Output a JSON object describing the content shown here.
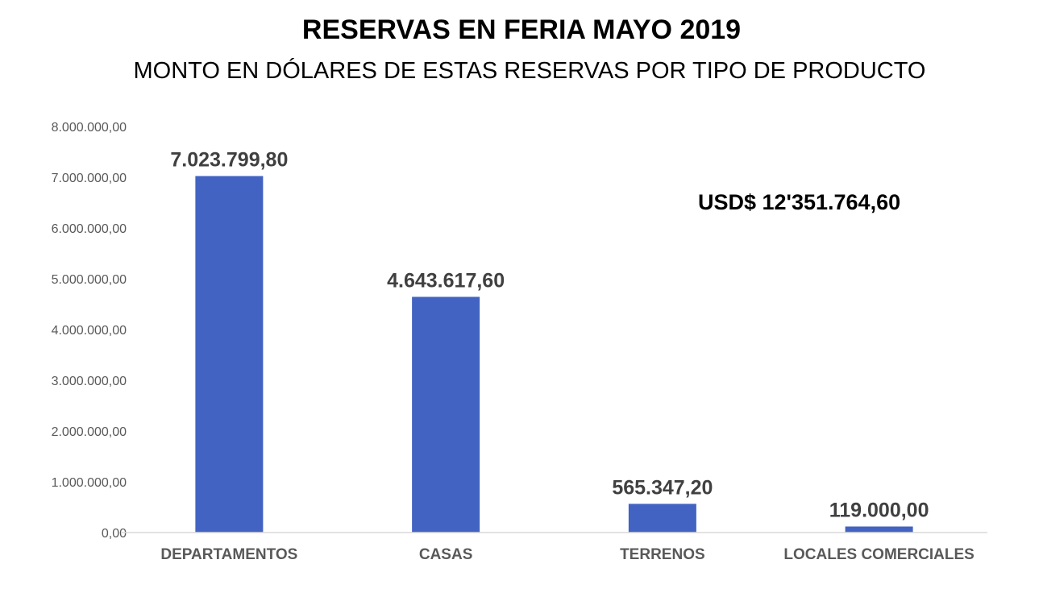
{
  "chart_data": {
    "type": "bar",
    "title": "RESERVAS EN FERIA MAYO 2019",
    "subtitle": "MONTO EN DÓLARES DE ESTAS RESERVAS POR TIPO DE PRODUCTO",
    "categories": [
      "DEPARTAMENTOS",
      "CASAS",
      "TERRENOS",
      "LOCALES COMERCIALES"
    ],
    "values": [
      7023799.8,
      4643617.6,
      565347.2,
      119000.0
    ],
    "data_labels": [
      "7.023.799,80",
      "4.643.617,60",
      "565.347,20",
      "119.000,00"
    ],
    "ylim": [
      0,
      8000000
    ],
    "yticks": [
      0,
      1000000,
      2000000,
      3000000,
      4000000,
      5000000,
      6000000,
      7000000,
      8000000
    ],
    "ytick_labels": [
      "0,00",
      "1.000.000,00",
      "2.000.000,00",
      "3.000.000,00",
      "4.000.000,00",
      "5.000.000,00",
      "6.000.000,00",
      "7.000.000,00",
      "8.000.000,00"
    ],
    "grid": false,
    "legend": "none",
    "annotation": "USD$ 12'351.764,60",
    "colors": {
      "bar": "#4263C2",
      "axis": "#D9D9D9",
      "tick_text": "#595959",
      "data_label": "#404040"
    }
  }
}
